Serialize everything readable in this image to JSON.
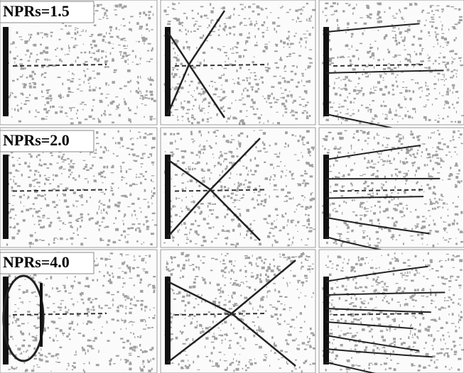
{
  "panels": [
    {
      "label": "NPRs=1.5"
    },
    {
      "label": "NPRs=2.0"
    },
    {
      "label": "NPRs=4.0"
    }
  ]
}
